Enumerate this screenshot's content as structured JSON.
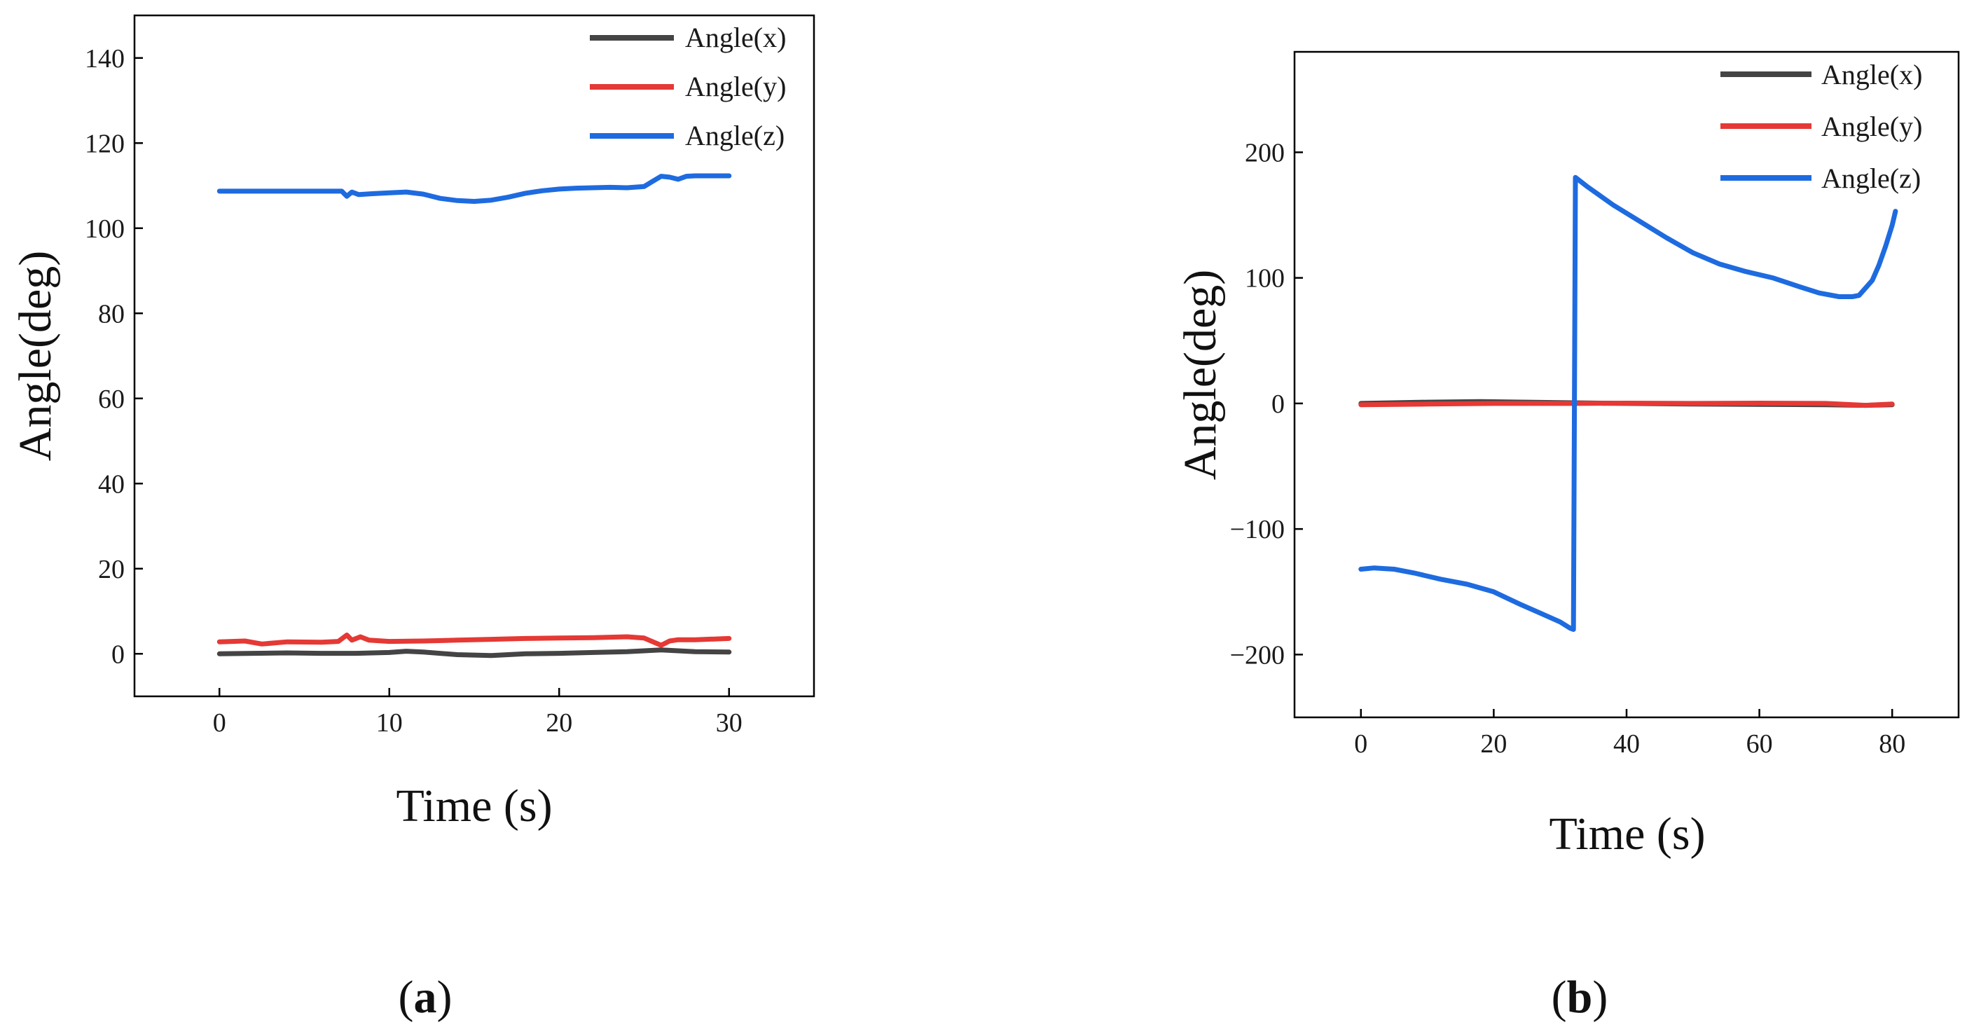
{
  "chart_data": [
    {
      "type": "line",
      "panel_label": "a",
      "xlabel": "Time (s)",
      "ylabel": "Angle(deg)",
      "xlim": [
        -5,
        35
      ],
      "ylim": [
        -10,
        150
      ],
      "xticks": [
        0,
        10,
        20,
        30
      ],
      "yticks": [
        0,
        20,
        40,
        60,
        80,
        100,
        120,
        140
      ],
      "legend_position": "top-right",
      "series": [
        {
          "name": "Angle(x)",
          "color": "#444444",
          "x": [
            0,
            2,
            4,
            6,
            8,
            10,
            11,
            12,
            14,
            16,
            18,
            20,
            22,
            24,
            26,
            27,
            28,
            30
          ],
          "y": [
            0.0,
            0.1,
            0.2,
            0.1,
            0.1,
            0.3,
            0.6,
            0.4,
            -0.2,
            -0.4,
            0.0,
            0.1,
            0.3,
            0.5,
            0.9,
            0.7,
            0.5,
            0.4
          ]
        },
        {
          "name": "Angle(y)",
          "color": "#e53935",
          "x": [
            0,
            1.5,
            2.5,
            4,
            6,
            7,
            7.5,
            7.8,
            8.3,
            8.8,
            10,
            12,
            14,
            16,
            18,
            20,
            22,
            24,
            25,
            26,
            26.5,
            27,
            28,
            30
          ],
          "y": [
            2.8,
            3.0,
            2.3,
            2.8,
            2.7,
            2.9,
            4.4,
            3.2,
            4.0,
            3.2,
            2.9,
            3.0,
            3.2,
            3.4,
            3.6,
            3.7,
            3.8,
            4.0,
            3.7,
            2.0,
            3.0,
            3.3,
            3.3,
            3.6
          ]
        },
        {
          "name": "Angle(z)",
          "color": "#1e6be0",
          "x": [
            0,
            2,
            4,
            6,
            7.2,
            7.5,
            7.8,
            8.2,
            9,
            10,
            11,
            12,
            13,
            14,
            15,
            16,
            17,
            18,
            19,
            20,
            21,
            22,
            23,
            24,
            25,
            25.5,
            26,
            26.5,
            27,
            27.5,
            28,
            29,
            30
          ],
          "y": [
            108.7,
            108.7,
            108.7,
            108.7,
            108.7,
            107.5,
            108.5,
            107.9,
            108.1,
            108.3,
            108.5,
            108.0,
            107.0,
            106.5,
            106.3,
            106.6,
            107.3,
            108.2,
            108.8,
            109.2,
            109.4,
            109.5,
            109.6,
            109.5,
            109.8,
            111.0,
            112.2,
            112.0,
            111.5,
            112.2,
            112.3,
            112.3,
            112.3
          ]
        }
      ]
    },
    {
      "type": "line",
      "panel_label": "b",
      "xlabel": "Time (s)",
      "ylabel": "Angle(deg)",
      "xlim": [
        -10,
        90
      ],
      "ylim": [
        -250,
        280
      ],
      "xticks": [
        0,
        20,
        40,
        60,
        80
      ],
      "yticks": [
        -200,
        -100,
        0,
        100,
        200
      ],
      "legend_position": "top-right",
      "series": [
        {
          "name": "Angle(x)",
          "color": "#444444",
          "x": [
            0,
            10,
            18,
            25,
            32,
            40,
            50,
            60,
            70,
            76,
            80
          ],
          "y": [
            0.0,
            1.0,
            1.5,
            1.0,
            0.5,
            0.0,
            -0.5,
            -0.8,
            -1.0,
            -1.5,
            -1.0
          ]
        },
        {
          "name": "Angle(y)",
          "color": "#e53935",
          "x": [
            0,
            10,
            20,
            32,
            40,
            50,
            60,
            70,
            76,
            80
          ],
          "y": [
            -1.0,
            -0.5,
            0.0,
            0.0,
            0.2,
            0.0,
            0.2,
            0.0,
            -1.5,
            -0.5
          ]
        },
        {
          "name": "Angle(z)",
          "color": "#1e6be0",
          "x": [
            0,
            2,
            5,
            8,
            12,
            16,
            20,
            24,
            27,
            30,
            31.5,
            32,
            32.3,
            34,
            38,
            42,
            46,
            50,
            54,
            58,
            62,
            66,
            69,
            72,
            74,
            75,
            76,
            77,
            78,
            79,
            80,
            80.5
          ],
          "y": [
            -132,
            -131,
            -132,
            -135,
            -140,
            -144,
            -150,
            -160,
            -167,
            -174,
            -179,
            -180,
            180,
            173,
            158,
            145,
            132,
            120,
            111,
            105,
            100,
            93,
            88,
            85,
            85,
            86,
            92,
            98,
            110,
            125,
            142,
            153
          ]
        }
      ]
    }
  ]
}
